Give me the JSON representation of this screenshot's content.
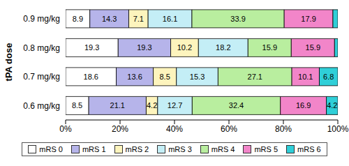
{
  "chart_data": {
    "type": "bar",
    "orientation": "horizontal",
    "stacked": true,
    "data_labels": true,
    "legend": "bottom",
    "grid": false,
    "ylabel": "tPA dose",
    "categories": [
      "0.9 mg/kg",
      "0.8 mg/kg",
      "0.7 mg/kg",
      "0.6 mg/kg"
    ],
    "xlim": [
      0,
      100
    ],
    "xticks": [
      {
        "value": 0,
        "label": "0%"
      },
      {
        "value": 20,
        "label": "20%"
      },
      {
        "value": 40,
        "label": "40%"
      },
      {
        "value": 60,
        "label": "60%"
      },
      {
        "value": 80,
        "label": "80%"
      },
      {
        "value": 100,
        "label": "100%"
      }
    ],
    "series": [
      {
        "name": "mRS 0",
        "color": "#ffffff",
        "values": [
          8.9,
          19.3,
          18.6,
          8.5
        ]
      },
      {
        "name": "mRS 1",
        "color": "#b6b4ea",
        "values": [
          14.3,
          19.3,
          13.6,
          21.1
        ]
      },
      {
        "name": "mRS 2",
        "color": "#fdf4bd",
        "values": [
          7.1,
          10.2,
          8.5,
          4.2
        ]
      },
      {
        "name": "mRS 3",
        "color": "#c4eef6",
        "values": [
          16.1,
          18.2,
          15.3,
          12.7
        ]
      },
      {
        "name": "mRS 4",
        "color": "#b9ee9f",
        "values": [
          33.9,
          15.9,
          27.1,
          32.4
        ]
      },
      {
        "name": "mRS 5",
        "color": "#f285c9",
        "values": [
          17.9,
          15.9,
          10.1,
          16.9
        ]
      },
      {
        "name": "mRS 6",
        "color": "#2fcfd8",
        "values": [
          1.8,
          1.2,
          6.8,
          4.2
        ],
        "value_labels": [
          null,
          null,
          "6.8",
          "4.2"
        ]
      }
    ]
  }
}
